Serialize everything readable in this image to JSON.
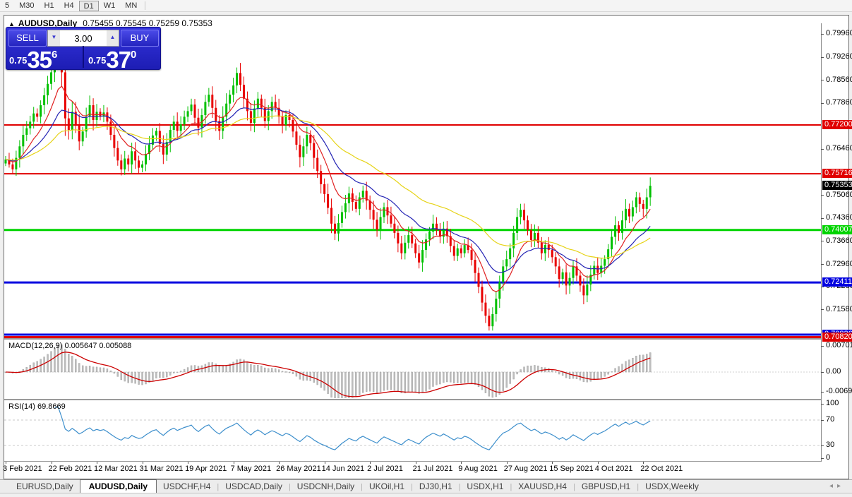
{
  "toolbar": {
    "timeframes": [
      "5",
      "M30",
      "H1",
      "H4",
      "D1",
      "W1",
      "MN"
    ],
    "active": "D1"
  },
  "title": {
    "arrow": "▲",
    "symbol": "AUDUSD,Daily",
    "ohlc": "0.75455 0.75545 0.75259 0.75353"
  },
  "trade": {
    "sell_label": "SELL",
    "buy_label": "BUY",
    "volume": "3.00",
    "sell_price": {
      "prefix": "0.75",
      "big": "35",
      "sup": "6"
    },
    "buy_price": {
      "prefix": "0.75",
      "big": "37",
      "sup": "0"
    }
  },
  "macd_panel": {
    "label": "MACD(12,26,9)",
    "values": "0.005647 0.005088",
    "axis": [
      {
        "t": "0.007015",
        "v": 0.007015
      },
      {
        "t": "0.00",
        "v": 0
      },
      {
        "t": "-0.006921",
        "v": -0.006921
      }
    ]
  },
  "rsi_panel": {
    "label": "RSI(14)",
    "value": "69.8669",
    "axis": [
      {
        "t": "100",
        "v": 100
      },
      {
        "t": "70",
        "v": 70
      },
      {
        "t": "30",
        "v": 30
      },
      {
        "t": "0",
        "v": 0
      }
    ],
    "guides": [
      70,
      30
    ]
  },
  "tabs": {
    "items": [
      "EURUSD,Daily",
      "AUDUSD,Daily",
      "USDCHF,H4",
      "USDCAD,Daily",
      "USDCNH,Daily",
      "UKOil,H1",
      "DJ30,H1",
      "USDX,H1",
      "XAUUSD,H4",
      "GBPUSD,H1",
      "USDX,Weekly"
    ],
    "active_index": 1,
    "scroll_left": "◂",
    "scroll_right": "▸"
  },
  "chart_data": {
    "type": "candlestick",
    "symbol": "AUDUSD",
    "timeframe": "Daily",
    "current_bar": {
      "open": 0.75455,
      "high": 0.75545,
      "low": 0.75259,
      "close": 0.75353
    },
    "date_labels": [
      "3 Feb 2021",
      "22 Feb 2021",
      "12 Mar 2021",
      "31 Mar 2021",
      "19 Apr 2021",
      "7 May 2021",
      "26 May 2021",
      "14 Jun 2021",
      "2 Jul 2021",
      "21 Jul 2021",
      "9 Aug 2021",
      "27 Aug 2021",
      "15 Sep 2021",
      "4 Oct 2021",
      "22 Oct 2021"
    ],
    "candles_per_label": 13,
    "closes": [
      0.7615,
      0.76,
      0.7585,
      0.762,
      0.7655,
      0.769,
      0.771,
      0.773,
      0.7755,
      0.7745,
      0.778,
      0.781,
      0.7845,
      0.788,
      0.7925,
      0.796,
      0.788,
      0.774,
      0.7705,
      0.776,
      0.772,
      0.767,
      0.77,
      0.7745,
      0.778,
      0.7735,
      0.776,
      0.7745,
      0.7758,
      0.773,
      0.769,
      0.765,
      0.7612,
      0.7585,
      0.7618,
      0.76,
      0.764,
      0.7612,
      0.759,
      0.76,
      0.7632,
      0.766,
      0.7688,
      0.7702,
      0.7662,
      0.763,
      0.7668,
      0.7705,
      0.773,
      0.7702,
      0.7722,
      0.7745,
      0.7762,
      0.7782,
      0.7742,
      0.7712,
      0.775,
      0.779,
      0.7812,
      0.7772,
      0.7732,
      0.7702,
      0.7745,
      0.7785,
      0.7812,
      0.784,
      0.7878,
      0.7842,
      0.78,
      0.7762,
      0.7726,
      0.777,
      0.78,
      0.7772,
      0.7732,
      0.7762,
      0.779,
      0.7772,
      0.7745,
      0.772,
      0.775,
      0.7735,
      0.77,
      0.766,
      0.7622,
      0.7655,
      0.769,
      0.7665,
      0.762,
      0.758,
      0.754,
      0.751,
      0.7468,
      0.742,
      0.739,
      0.7422,
      0.7455,
      0.7482,
      0.7512,
      0.7486,
      0.7465,
      0.75,
      0.752,
      0.749,
      0.7462,
      0.7432,
      0.7402,
      0.744,
      0.747,
      0.7445,
      0.742,
      0.7392,
      0.736,
      0.733,
      0.7362,
      0.7385,
      0.736,
      0.733,
      0.7302,
      0.734,
      0.7372,
      0.7396,
      0.742,
      0.74,
      0.738,
      0.7405,
      0.7382,
      0.7352,
      0.7322,
      0.7345,
      0.733,
      0.7355,
      0.734,
      0.731,
      0.727,
      0.7228,
      0.718,
      0.714,
      0.7108,
      0.7145,
      0.7192,
      0.7242,
      0.729,
      0.7312,
      0.7345,
      0.7392,
      0.744,
      0.7462,
      0.743,
      0.74,
      0.737,
      0.7392,
      0.7362,
      0.733,
      0.7355,
      0.734,
      0.7318,
      0.729,
      0.7252,
      0.7272,
      0.7232,
      0.7255,
      0.729,
      0.7262,
      0.7232,
      0.7202,
      0.7235,
      0.7265,
      0.7292,
      0.727,
      0.7292,
      0.7312,
      0.7342,
      0.738,
      0.7415,
      0.7392,
      0.743,
      0.7465,
      0.7442,
      0.747,
      0.75,
      0.748,
      0.7465,
      0.75,
      0.75353
    ],
    "price_ticks": [
      {
        "t": "0.79960",
        "v": 0.7996
      },
      {
        "t": "0.79260",
        "v": 0.7926
      },
      {
        "t": "0.78560",
        "v": 0.7856
      },
      {
        "t": "0.77860",
        "v": 0.7786
      },
      {
        "t": "0.76460",
        "v": 0.7646
      },
      {
        "t": "0.75060",
        "v": 0.7506
      },
      {
        "t": "0.74360",
        "v": 0.7436
      },
      {
        "t": "0.73660",
        "v": 0.7366
      },
      {
        "t": "0.72960",
        "v": 0.7296
      },
      {
        "t": "0.72280",
        "v": 0.7228
      },
      {
        "t": "0.71580",
        "v": 0.7158
      }
    ],
    "levels": [
      {
        "label": "0.77200",
        "price": 0.772,
        "color": "#e00000",
        "lw": 2
      },
      {
        "label": "0.75716",
        "price": 0.75716,
        "color": "#e00000",
        "lw": 2
      },
      {
        "label": "0.74007",
        "price": 0.74007,
        "color": "#00d400",
        "lw": 3
      },
      {
        "label": "0.72411",
        "price": 0.72411,
        "color": "#0000e0",
        "lw": 3
      },
      {
        "label": "0.70826",
        "price": 0.70826,
        "color": "#0000e0",
        "lw": 3
      },
      {
        "label": "0.70820",
        "price": 0.7082,
        "color": "#e00000",
        "lw": 3
      }
    ],
    "current_price": {
      "label": "0.75353",
      "price": 0.75353,
      "bg": "#000000"
    },
    "indicators": {
      "ma_periods": [
        10,
        21,
        45
      ],
      "macd": [
        12,
        26,
        9
      ],
      "rsi": 14
    },
    "colors": {
      "up": "#00c000",
      "down": "#e80000",
      "ma_fast": "#e02222",
      "ma_mid": "#2424b4",
      "ma_slow": "#e6d317",
      "macd_hist": "#bdbdbd",
      "macd_hist_edge": "#9e9e9e",
      "macd_signal": "#cc0000",
      "rsi": "#3d8fcc"
    }
  }
}
